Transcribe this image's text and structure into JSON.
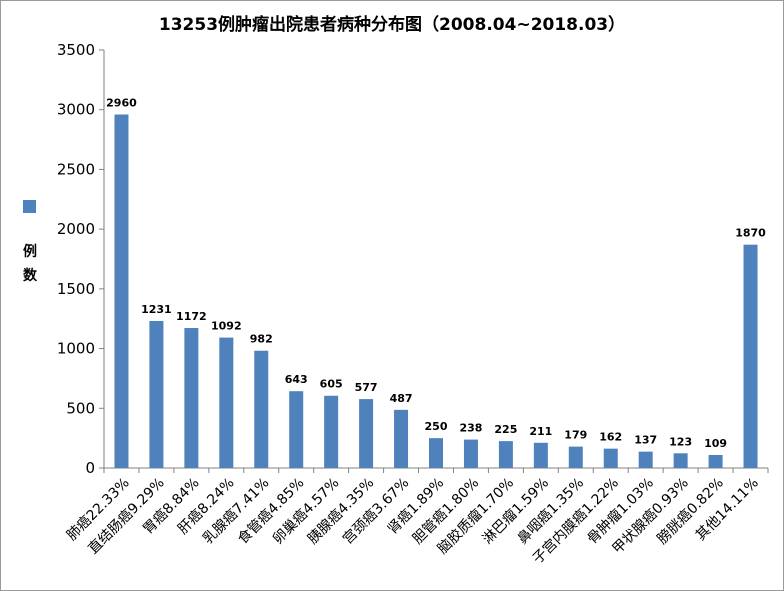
{
  "chart_data": {
    "type": "bar",
    "title": "13253例肿瘤出院患者病种分布图（2008.04~2018.03）",
    "ylabel": "例数",
    "ylim": [
      0,
      3500
    ],
    "yticks": [
      0,
      500,
      1000,
      1500,
      2000,
      2500,
      3000,
      3500
    ],
    "grid": false,
    "legend": "left",
    "bar_color": "#4f81bd",
    "categories": [
      "肺癌22.33%",
      "直结肠癌9.29%",
      "胃癌8.84%",
      "肝癌8.24%",
      "乳腺癌7.41%",
      "食管癌4.85%",
      "卵巢癌4.57%",
      "胰腺癌4.35%",
      "宫颈癌3.67%",
      "肾癌1.89%",
      "胆管癌1.80%",
      "脑胶质瘤1.70%",
      "淋巴瘤1.59%",
      "鼻咽癌1.35%",
      "子宫内膜癌1.22%",
      "骨肿瘤1.03%",
      "甲状腺癌0.93%",
      "膀胱癌0.82%",
      "其他14.11%"
    ],
    "values": [
      2960,
      1231,
      1172,
      1092,
      982,
      643,
      605,
      577,
      487,
      250,
      238,
      225,
      211,
      179,
      162,
      137,
      123,
      109,
      1870
    ]
  }
}
